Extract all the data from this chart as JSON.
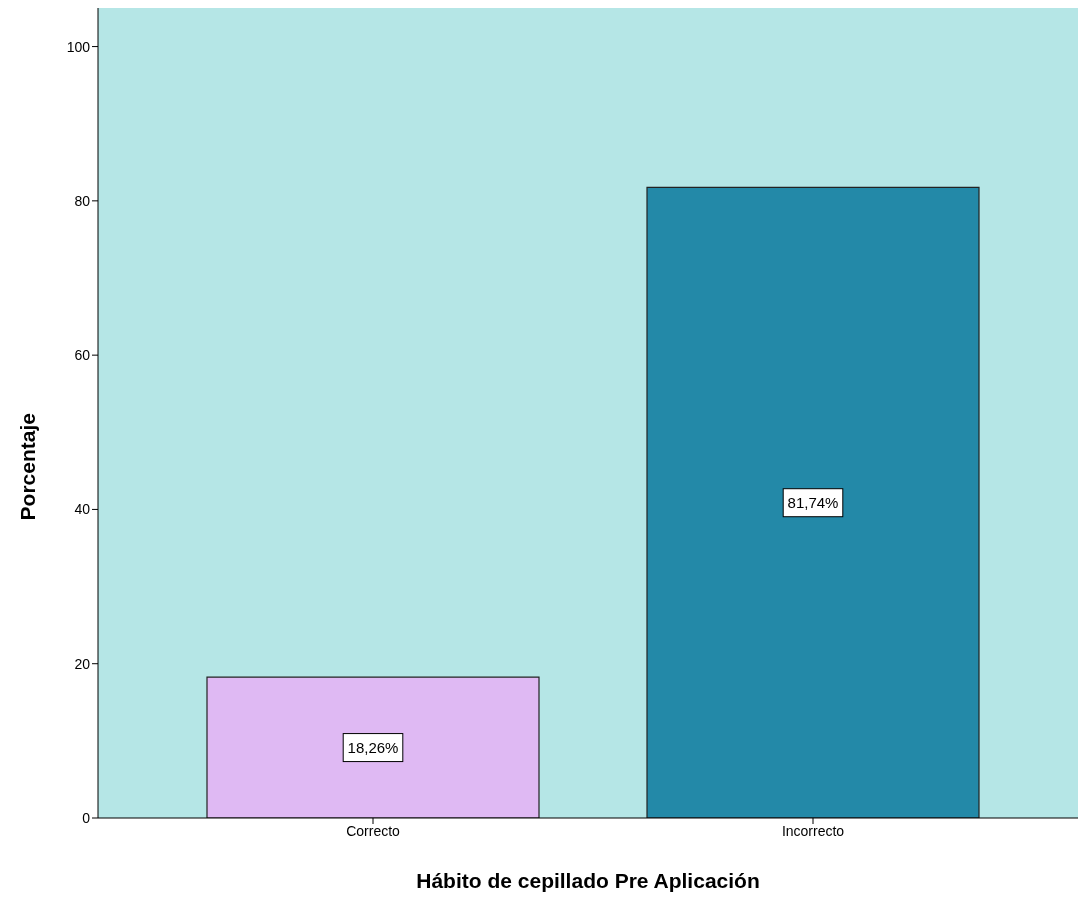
{
  "chart_data": {
    "type": "bar",
    "xlabel": "Hábito de cepillado Pre Aplicación",
    "ylabel": "Porcentaje",
    "categories": [
      "Correcto",
      "Incorrecto"
    ],
    "values": [
      18.26,
      81.74
    ],
    "colors": [
      "#dfb9f3",
      "#2389a8"
    ],
    "value_labels": [
      "18,26%",
      "81,74%"
    ],
    "ylim": [
      0,
      105
    ],
    "yticks": [
      0,
      20,
      40,
      60,
      80,
      100
    ],
    "grid": false,
    "legend": false
  }
}
